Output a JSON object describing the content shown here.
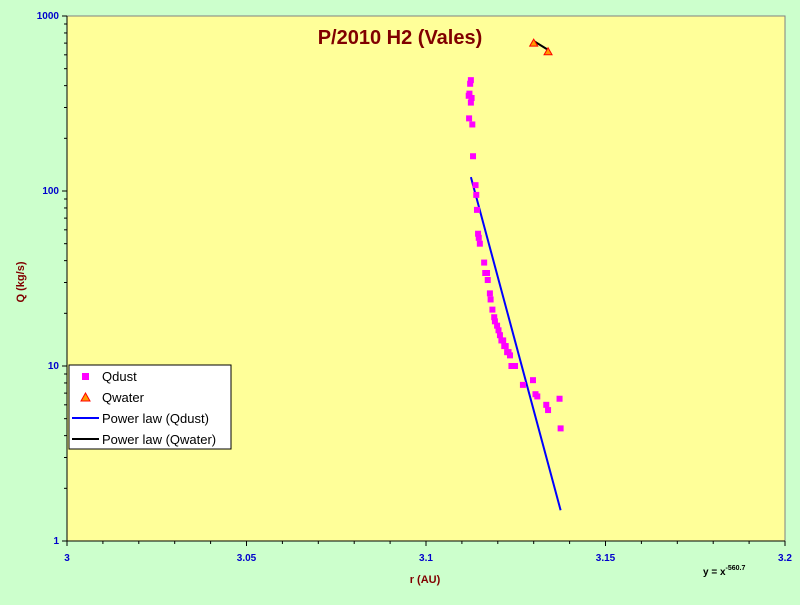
{
  "chart_data": {
    "type": "scatter",
    "title": "P/2010 H2 (Vales)",
    "xlabel": "r (AU)",
    "ylabel": "Q (kg/s)",
    "xlim": [
      3.0,
      3.2
    ],
    "ylim": [
      1,
      1000
    ],
    "y_scale": "log",
    "x_ticks": [
      {
        "value": 3.0,
        "label": "3"
      },
      {
        "value": 3.05,
        "label": "3.05"
      },
      {
        "value": 3.1,
        "label": "3.1"
      },
      {
        "value": 3.15,
        "label": "3.15"
      },
      {
        "value": 3.2,
        "label": "3.2"
      }
    ],
    "y_ticks": [
      {
        "value": 1,
        "label": "1"
      },
      {
        "value": 10,
        "label": "10"
      },
      {
        "value": 100,
        "label": "100"
      },
      {
        "value": 1000,
        "label": "1000"
      }
    ],
    "background_color": "#ffff99",
    "grid": false,
    "legend_position": "bottom-left",
    "series": [
      {
        "name": "Qdust",
        "kind": "scatter",
        "marker": "square",
        "color": "#ff00ff",
        "points": [
          [
            3.1125,
            430
          ],
          [
            3.1123,
            410
          ],
          [
            3.1121,
            360
          ],
          [
            3.1119,
            350
          ],
          [
            3.1127,
            340
          ],
          [
            3.1125,
            320
          ],
          [
            3.112,
            260
          ],
          [
            3.1129,
            240
          ],
          [
            3.1131,
            158
          ],
          [
            3.1138,
            108
          ],
          [
            3.114,
            95
          ],
          [
            3.1142,
            78
          ],
          [
            3.1145,
            57
          ],
          [
            3.1147,
            54
          ],
          [
            3.115,
            50
          ],
          [
            3.1162,
            39
          ],
          [
            3.1165,
            34
          ],
          [
            3.117,
            34
          ],
          [
            3.1172,
            31
          ],
          [
            3.1178,
            26
          ],
          [
            3.118,
            24
          ],
          [
            3.1185,
            21
          ],
          [
            3.119,
            19
          ],
          [
            3.1192,
            18
          ],
          [
            3.1198,
            17
          ],
          [
            3.1202,
            16
          ],
          [
            3.1206,
            15
          ],
          [
            3.121,
            14
          ],
          [
            3.1215,
            14
          ],
          [
            3.1218,
            13
          ],
          [
            3.1222,
            13
          ],
          [
            3.1226,
            12
          ],
          [
            3.123,
            12
          ],
          [
            3.1234,
            11.5
          ],
          [
            3.1238,
            10
          ],
          [
            3.1242,
            10
          ],
          [
            3.1248,
            10
          ],
          [
            3.127,
            7.8
          ],
          [
            3.1298,
            8.3
          ],
          [
            3.1305,
            6.9
          ],
          [
            3.131,
            6.7
          ],
          [
            3.1335,
            6.0
          ],
          [
            3.134,
            5.6
          ],
          [
            3.1372,
            6.5
          ],
          [
            3.1375,
            4.4
          ]
        ]
      },
      {
        "name": "Qwater",
        "kind": "scatter",
        "marker": "triangle",
        "color": "#ff9900",
        "edge_color": "#ff0000",
        "points": [
          [
            3.13,
            700
          ],
          [
            3.134,
            625
          ]
        ]
      },
      {
        "name": "Power law (Qdust)",
        "kind": "line",
        "color": "#0000ff",
        "points": [
          [
            3.1125,
            120
          ],
          [
            3.1375,
            1.5
          ]
        ]
      },
      {
        "name": "Power law (Qwater)",
        "kind": "line",
        "color": "#000000",
        "points": [
          [
            3.13,
            720
          ],
          [
            3.134,
            640
          ]
        ]
      }
    ],
    "annotation": {
      "base": "y = x",
      "exponent": "-560.7"
    }
  }
}
